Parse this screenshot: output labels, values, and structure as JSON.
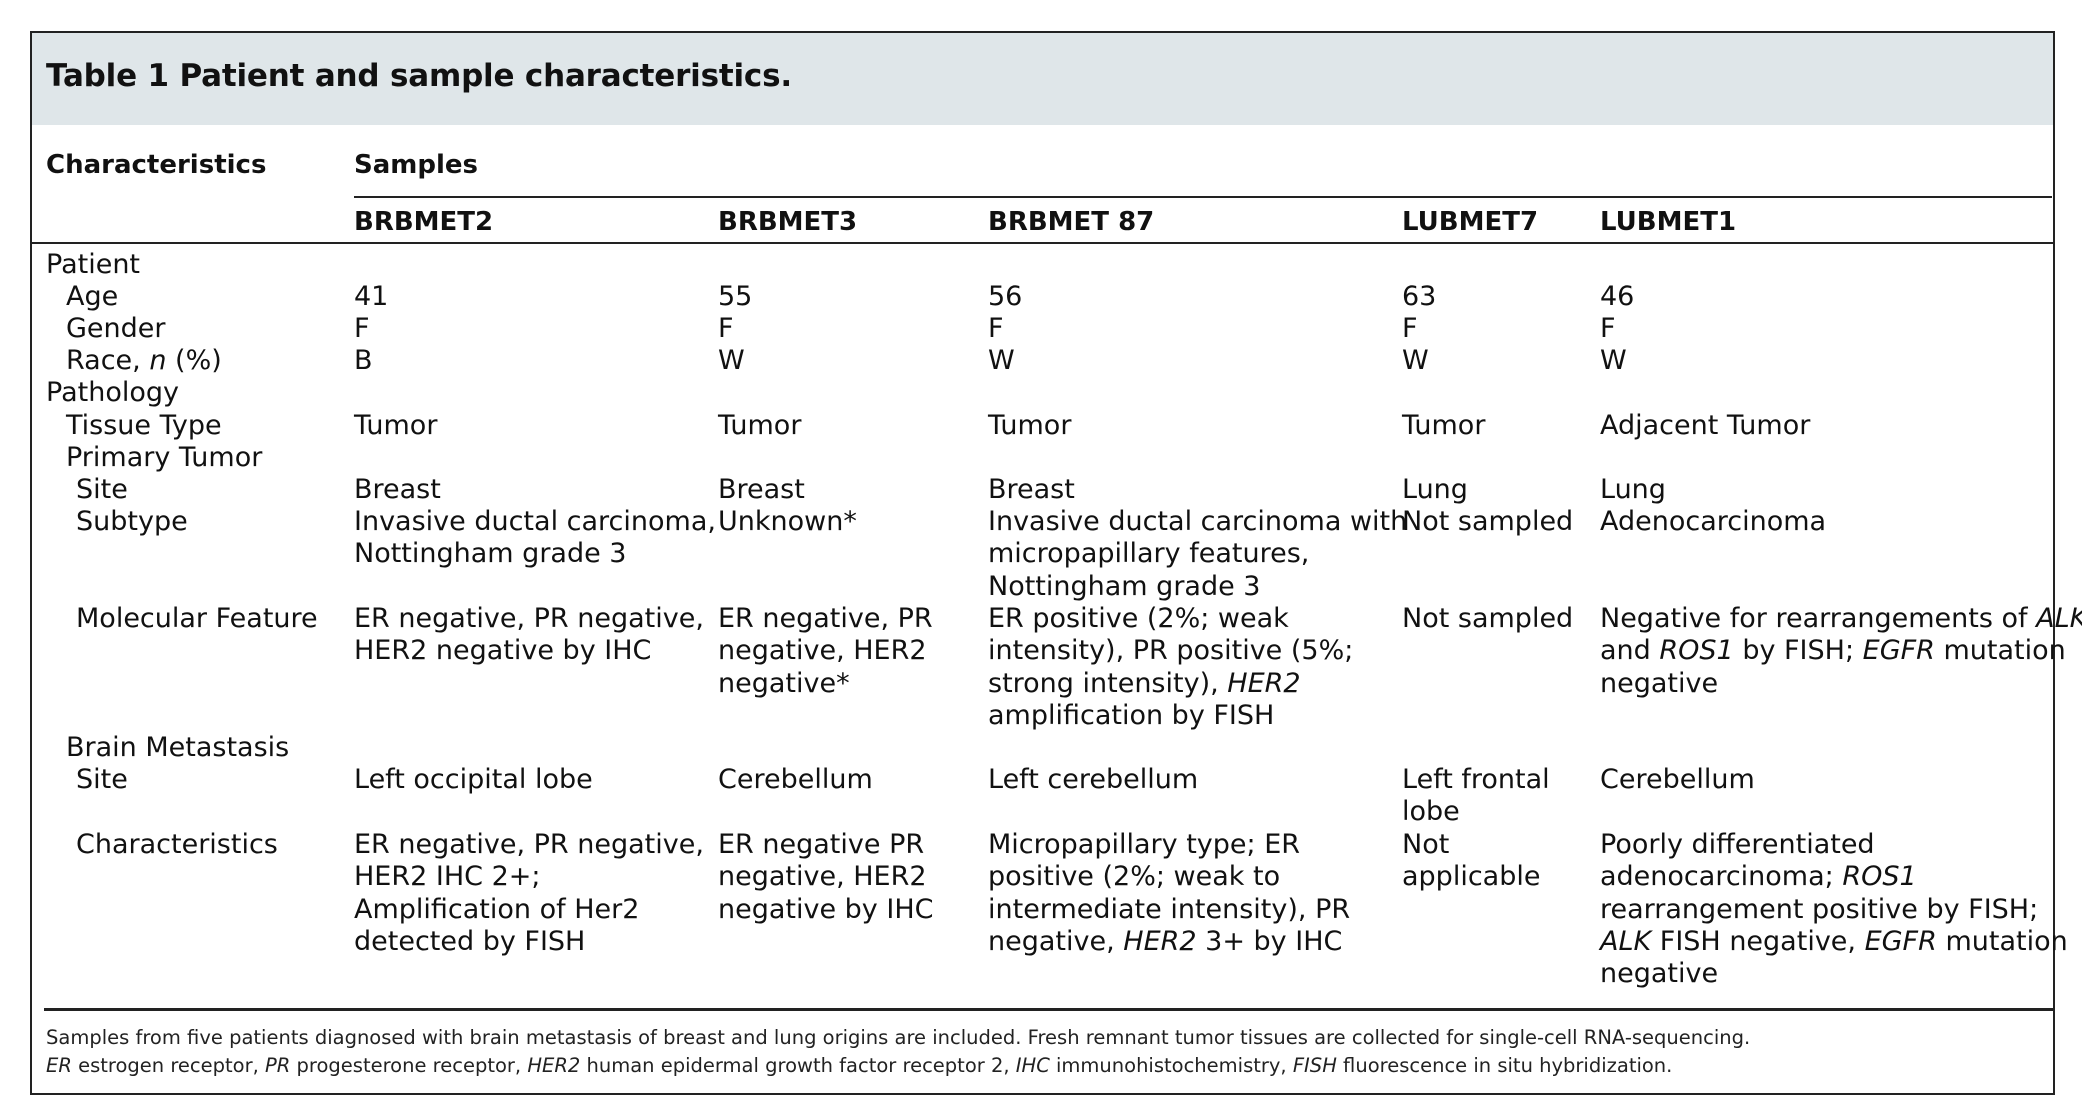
{
  "table": {
    "title": "Table 1 Patient and sample characteristics.",
    "header": {
      "characteristics": "Characteristics",
      "samples": "Samples",
      "columns": [
        "BRBMET2",
        "BRBMET3",
        "BRBMET 87",
        "LUBMET7",
        "LUBMET1"
      ]
    },
    "rows": {
      "patient": "Patient",
      "age": {
        "label": "Age",
        "values": [
          "41",
          "55",
          "56",
          "63",
          "46"
        ]
      },
      "gender": {
        "label": "Gender",
        "values": [
          "F",
          "F",
          "F",
          "F",
          "F"
        ]
      },
      "race": {
        "label_prefix": "Race, ",
        "label_italic": "n",
        "label_suffix": " (%)",
        "values": [
          "B",
          "W",
          "W",
          "W",
          "W"
        ]
      },
      "pathology": "Pathology",
      "tissue_type": {
        "label": "Tissue Type",
        "values": [
          "Tumor",
          "Tumor",
          "Tumor",
          "Tumor",
          "Adjacent Tumor"
        ]
      },
      "primary_tumor": "Primary Tumor",
      "site": {
        "label": "Site",
        "values": [
          "Breast",
          "Breast",
          "Breast",
          "Lung",
          "Lung"
        ]
      },
      "subtype": {
        "label": "Subtype",
        "c1": [
          "Invasive ductal carcinoma,",
          "Nottingham grade 3"
        ],
        "c2": [
          "Unknown*"
        ],
        "c3": [
          "Invasive ductal carcinoma with",
          "micropapillary features,",
          "Nottingham grade 3"
        ],
        "c4": [
          "Not sampled"
        ],
        "c5": [
          "Adenocarcinoma"
        ]
      },
      "molecular": {
        "label": "Molecular Feature",
        "c1": [
          "ER negative, PR negative,",
          "HER2 negative by IHC"
        ],
        "c2": [
          "ER negative, PR",
          "negative, HER2",
          "negative*"
        ],
        "c3": [
          "ER positive (2%; weak",
          "intensity), PR positive (5%;",
          "strong intensity), ",
          "HER2",
          "amplification by FISH"
        ],
        "c4": [
          "Not sampled"
        ],
        "c5": [
          "Negative for rearrangements of ",
          "ALK",
          "and ",
          "ROS1",
          " by FISH; ",
          "EGFR",
          " mutation",
          "negative"
        ]
      },
      "brain_metastasis": "Brain Metastasis",
      "bm_site": {
        "label": "Site",
        "c1": [
          "Left occipital lobe"
        ],
        "c2": [
          "Cerebellum"
        ],
        "c3": [
          "Left cerebellum"
        ],
        "c4": [
          "Left frontal",
          "lobe"
        ],
        "c5": [
          "Cerebellum"
        ]
      },
      "bm_characteristics": {
        "label": "Characteristics",
        "c1": [
          "ER negative, PR negative,",
          "HER2 IHC 2+;",
          "Amplification of Her2",
          "detected by FISH"
        ],
        "c2": [
          "ER negative PR",
          "negative, HER2",
          "negative by IHC"
        ],
        "c3": [
          "Micropapillary type; ER",
          "positive (2%; weak to",
          "intermediate intensity), PR",
          "negative, ",
          "HER2",
          " 3+ by IHC"
        ],
        "c4": [
          "Not",
          "applicable"
        ],
        "c5": [
          "Poorly differentiated",
          "adenocarcinoma; ",
          "ROS1",
          "rearrangement positive by FISH;",
          "ALK",
          " FISH negative, ",
          "EGFR",
          " mutation",
          "negative"
        ]
      }
    },
    "footnote": {
      "line1": "Samples from five patients diagnosed with brain metastasis of breast and lung origins are included. Fresh remnant tumor tissues are collected for single-cell RNA-sequencing.",
      "line2_parts": [
        {
          "text": "ER",
          "italic": true
        },
        {
          "text": " estrogen receptor, ",
          "italic": false
        },
        {
          "text": "PR",
          "italic": true
        },
        {
          "text": " progesterone receptor, ",
          "italic": false
        },
        {
          "text": "HER2",
          "italic": true
        },
        {
          "text": " human epidermal growth factor receptor 2, ",
          "italic": false
        },
        {
          "text": "IHC",
          "italic": true
        },
        {
          "text": " immunohistochemistry, ",
          "italic": false
        },
        {
          "text": "FISH",
          "italic": true
        },
        {
          "text": " fluorescence in situ hybridization.",
          "italic": false
        }
      ]
    }
  }
}
